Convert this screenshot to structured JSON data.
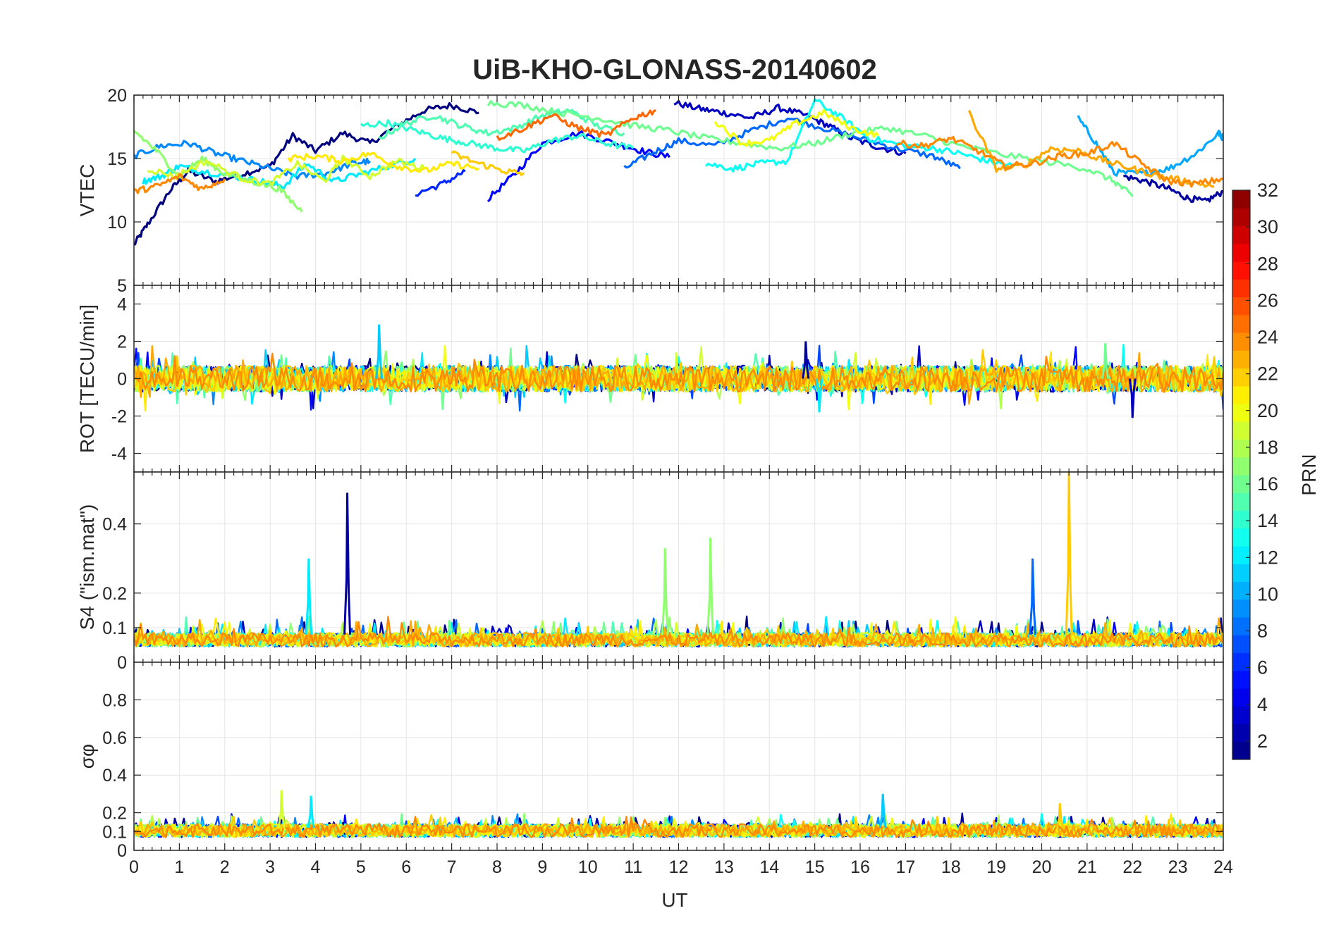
{
  "chart_data": {
    "title": "UiB-KHO-GLONASS-20140602",
    "type": "line",
    "grid": true,
    "xlabel": "UT",
    "xlim": [
      0,
      24
    ],
    "xticks": [
      0,
      1,
      2,
      3,
      4,
      5,
      6,
      7,
      8,
      9,
      10,
      11,
      12,
      13,
      14,
      15,
      16,
      17,
      18,
      19,
      20,
      21,
      22,
      23,
      24
    ],
    "colorbar": {
      "label": "PRN",
      "range": [
        1,
        32
      ],
      "ticks": [
        2,
        4,
        6,
        8,
        10,
        12,
        14,
        16,
        18,
        20,
        22,
        24,
        26,
        28,
        30,
        32
      ],
      "colormap": "jet"
    },
    "panels": [
      {
        "id": "vtec",
        "ylabel": "VTEC",
        "ylim": [
          5,
          20
        ],
        "yticks": [
          5,
          10,
          15,
          20
        ],
        "series": [
          {
            "prn": 1,
            "x": [
              0,
              0.3,
              0.8,
              1.2,
              1.8,
              2.4,
              3.0,
              3.5,
              4.0,
              4.6,
              5.2,
              5.8,
              6.4,
              7.0,
              7.6
            ],
            "y": [
              8.2,
              9.8,
              12.5,
              14.0,
              13.2,
              13.8,
              14.4,
              16.8,
              15.6,
              17.0,
              16.2,
              17.6,
              18.8,
              19.2,
              18.6
            ]
          },
          {
            "prn": 3,
            "x": [
              11.9,
              12.5,
              13.0,
              13.6,
              14.2,
              14.8,
              15.3,
              15.8,
              16.4,
              17.0
            ],
            "y": [
              19.4,
              18.9,
              18.6,
              18.2,
              19.0,
              18.4,
              17.6,
              16.6,
              15.9,
              15.4
            ]
          },
          {
            "prn": 2,
            "x": [
              21.8,
              22.3,
              22.8,
              23.2,
              23.6,
              24.0
            ],
            "y": [
              13.6,
              13.2,
              12.6,
              11.9,
              11.6,
              12.4
            ]
          },
          {
            "prn": 5,
            "x": [
              7.8,
              8.4,
              9.0,
              9.8,
              10.6,
              11.2,
              11.8
            ],
            "y": [
              11.8,
              13.8,
              16.2,
              17.0,
              16.2,
              15.6,
              15.1
            ]
          },
          {
            "prn": 6,
            "x": [
              6.2,
              6.8,
              7.3
            ],
            "y": [
              12.2,
              13.0,
              14.0
            ]
          },
          {
            "prn": 8,
            "x": [
              10.8,
              11.4,
              12.0,
              12.8,
              13.6,
              14.4,
              15.2,
              16.0,
              16.8,
              17.6,
              18.2
            ],
            "y": [
              14.2,
              15.4,
              16.4,
              16.0,
              17.2,
              18.2,
              17.4,
              16.6,
              15.8,
              15.2,
              14.2
            ]
          },
          {
            "prn": 9,
            "x": [
              0,
              0.6,
              1.2,
              1.8,
              2.4,
              3.0,
              3.6,
              4.2,
              4.8,
              5.2
            ],
            "y": [
              15.2,
              16.0,
              16.2,
              15.4,
              14.8,
              14.2,
              13.6,
              13.8,
              14.6,
              14.8
            ]
          },
          {
            "prn": 10,
            "x": [
              20.8,
              21.2,
              21.6,
              22.2,
              22.8,
              23.4,
              23.9,
              24.0
            ],
            "y": [
              18.2,
              16.2,
              13.9,
              13.8,
              14.2,
              15.4,
              17.0,
              16.6
            ]
          },
          {
            "prn": 12,
            "x": [
              0.2,
              0.6,
              1.0,
              1.5,
              2.2,
              2.8,
              3.3,
              3.8,
              4.4,
              5.0,
              5.6,
              6.2
            ],
            "y": [
              13.2,
              13.6,
              14.4,
              14.0,
              13.6,
              13.2,
              12.8,
              14.6,
              13.2,
              13.8,
              14.4,
              15.0
            ]
          },
          {
            "prn": 13,
            "x": [
              12.6,
              13.2,
              13.8,
              14.4,
              15.0,
              15.6,
              16.2,
              17.0,
              17.6,
              18.2,
              18.8,
              19.4
            ],
            "y": [
              14.6,
              14.2,
              14.6,
              14.8,
              19.6,
              18.2,
              16.6,
              16.0,
              15.8,
              15.4,
              14.8,
              14.4
            ]
          },
          {
            "prn": 14,
            "x": [
              5.0,
              5.6,
              6.2,
              6.8,
              7.4,
              8.0,
              8.6,
              9.2,
              9.8,
              10.4,
              11.0
            ],
            "y": [
              17.6,
              17.8,
              17.2,
              16.6,
              16.2,
              15.8,
              15.6,
              16.4,
              16.8,
              16.2,
              15.8
            ]
          },
          {
            "prn": 15,
            "x": [
              5.4,
              6.0,
              6.6,
              7.2,
              7.8,
              8.4,
              9.0,
              9.6,
              10.2,
              10.8
            ],
            "y": [
              16.6,
              17.8,
              18.4,
              17.6,
              17.0,
              17.4,
              18.4,
              18.8,
              17.6,
              17.0
            ]
          },
          {
            "prn": 16,
            "x": [
              7.8,
              8.6,
              9.4,
              10.2,
              11.0,
              11.8,
              12.6,
              13.4,
              14.2,
              15.0,
              15.8,
              16.6,
              17.4,
              18.2,
              19.0,
              20.0,
              21.0,
              21.6,
              22.0
            ],
            "y": [
              19.4,
              19.2,
              18.6,
              18.2,
              17.6,
              17.2,
              16.6,
              16.2,
              15.8,
              16.2,
              17.0,
              17.4,
              16.8,
              16.0,
              15.4,
              14.8,
              14.2,
              13.2,
              12.0
            ]
          },
          {
            "prn": 17,
            "x": [
              0,
              0.5,
              1.0,
              1.5,
              2.0,
              2.6,
              3.2,
              3.7
            ],
            "y": [
              17.2,
              15.6,
              13.6,
              15.0,
              13.8,
              13.2,
              12.6,
              10.8
            ]
          },
          {
            "prn": 19,
            "x": [
              0.3,
              0.9,
              1.6,
              2.4,
              3.0,
              3.6,
              4.2,
              4.6,
              5.2,
              5.8,
              6.4
            ],
            "y": [
              14.2,
              13.6,
              14.8,
              13.4,
              13.0,
              14.6,
              13.2,
              15.0,
              13.6,
              14.8,
              14.2
            ]
          },
          {
            "prn": 20,
            "x": [
              12.8,
              13.4,
              14.0,
              14.6,
              15.2,
              15.8,
              16.4
            ],
            "y": [
              18.0,
              16.2,
              16.4,
              17.8,
              18.6,
              17.4,
              16.8
            ]
          },
          {
            "prn": 21,
            "x": [
              3.4,
              4.0,
              4.6,
              5.2,
              5.8,
              6.4,
              7.0,
              7.6
            ],
            "y": [
              15.0,
              15.2,
              14.8,
              15.4,
              14.4,
              14.0,
              14.6,
              14.2
            ]
          },
          {
            "prn": 22,
            "x": [
              7.0,
              7.6,
              8.2,
              8.6
            ],
            "y": [
              15.4,
              14.6,
              14.0,
              13.8
            ]
          },
          {
            "prn": 23,
            "x": [
              18.4,
              19.0,
              19.6,
              20.2,
              20.8,
              21.4,
              22.0,
              22.6,
              23.2,
              23.8
            ],
            "y": [
              18.6,
              14.2,
              14.4,
              15.8,
              15.6,
              14.8,
              14.2,
              13.6,
              13.2,
              12.8
            ]
          },
          {
            "prn": 24,
            "x": [
              0,
              0.5,
              1.0,
              1.5,
              2.0
            ],
            "y": [
              12.4,
              12.8,
              13.6,
              12.6,
              13.4
            ]
          },
          {
            "prn": 25,
            "x": [
              8.0,
              8.6,
              9.2,
              9.8,
              10.4,
              11.0,
              11.5
            ],
            "y": [
              16.6,
              17.4,
              18.4,
              17.4,
              16.8,
              18.2,
              18.8
            ]
          },
          {
            "prn": 24,
            "x": [
              16.8,
              17.4,
              18.0,
              18.6,
              19.2,
              19.8,
              20.4,
              21.0,
              21.6,
              22.2,
              22.8,
              23.4,
              24.0
            ],
            "y": [
              16.2,
              16.0,
              16.6,
              15.6,
              14.4,
              14.6,
              15.2,
              15.4,
              16.2,
              14.6,
              13.2,
              13.0,
              13.4
            ]
          }
        ]
      },
      {
        "id": "rot",
        "ylabel": "ROT [TECU/min]",
        "ylim": [
          -5,
          5
        ],
        "yticks": [
          -4,
          -2,
          0,
          2,
          4
        ]
      },
      {
        "id": "s4",
        "ylabel": "S4 (\"ism.mat\")",
        "ylim": [
          0,
          0.55
        ],
        "yticks": [
          0,
          0.1,
          0.2,
          0.4
        ]
      },
      {
        "id": "sigma",
        "ylabel": "σφ",
        "ylim": [
          0,
          1
        ],
        "yticks": [
          0,
          0.1,
          0.2,
          0.4,
          0.6,
          0.8
        ]
      }
    ],
    "spikes": [
      {
        "panel": "rot",
        "prn": 11,
        "x": 5.4,
        "y": 2.9
      },
      {
        "panel": "rot",
        "prn": 2,
        "x": 14.8,
        "y": 2.0
      },
      {
        "panel": "rot",
        "prn": 3,
        "x": 22.0,
        "y": -2.1
      },
      {
        "panel": "rot",
        "prn": 12,
        "x": 15.1,
        "y": -1.8
      },
      {
        "panel": "rot",
        "prn": 16,
        "x": 21.4,
        "y": 1.9
      },
      {
        "panel": "s4",
        "prn": 2,
        "x": 4.7,
        "y": 0.49
      },
      {
        "panel": "s4",
        "prn": 12,
        "x": 3.85,
        "y": 0.3
      },
      {
        "panel": "s4",
        "prn": 17,
        "x": 11.7,
        "y": 0.33
      },
      {
        "panel": "s4",
        "prn": 17,
        "x": 12.7,
        "y": 0.36
      },
      {
        "panel": "s4",
        "prn": 8,
        "x": 19.8,
        "y": 0.3
      },
      {
        "panel": "s4",
        "prn": 22,
        "x": 20.6,
        "y": 0.55
      },
      {
        "panel": "sigma",
        "prn": 19,
        "x": 3.25,
        "y": 0.32
      },
      {
        "panel": "sigma",
        "prn": 12,
        "x": 3.9,
        "y": 0.29
      },
      {
        "panel": "sigma",
        "prn": 11,
        "x": 16.5,
        "y": 0.3
      },
      {
        "panel": "sigma",
        "prn": 22,
        "x": 20.4,
        "y": 0.25
      }
    ]
  }
}
